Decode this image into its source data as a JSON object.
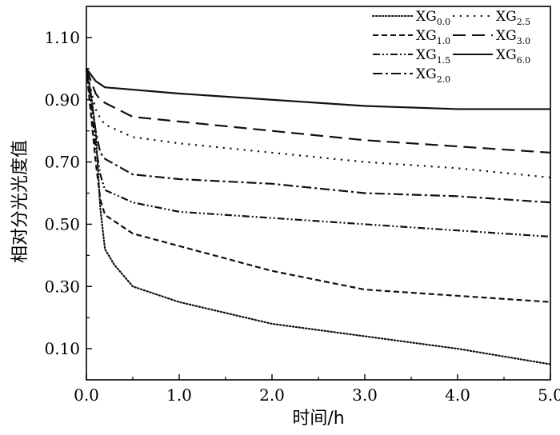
{
  "chart_data": {
    "type": "line",
    "title": "",
    "xlabel": "时间/h",
    "ylabel": "相对分光光度值",
    "xlim": [
      0,
      5
    ],
    "ylim": [
      0,
      1.2
    ],
    "x_ticks": [
      0,
      1,
      2,
      3,
      4,
      5
    ],
    "x_tick_labels": [
      "0.0",
      "1.0",
      "2.0",
      "3.0",
      "4.0",
      "5.0"
    ],
    "y_ticks": [
      0.1,
      0.3,
      0.5,
      0.7,
      0.9,
      1.1
    ],
    "y_tick_labels": [
      "0.10",
      "0.30",
      "0.50",
      "0.70",
      "0.90",
      "1.10"
    ],
    "grid": false,
    "legend_position": "top-right",
    "legend_columns": 2,
    "series": [
      {
        "name": "XG",
        "subscript": "0.0",
        "dash": "dotted",
        "x": [
          0,
          0.05,
          0.1,
          0.15,
          0.2,
          0.3,
          0.5,
          1,
          2,
          3,
          4,
          5
        ],
        "y": [
          1.0,
          0.92,
          0.8,
          0.55,
          0.42,
          0.37,
          0.3,
          0.25,
          0.18,
          0.14,
          0.1,
          0.05
        ]
      },
      {
        "name": "XG",
        "subscript": "1.0",
        "dash": "short-dash",
        "x": [
          0,
          0.05,
          0.1,
          0.15,
          0.2,
          0.5,
          1,
          2,
          3,
          4,
          5
        ],
        "y": [
          1.0,
          0.85,
          0.7,
          0.58,
          0.53,
          0.47,
          0.43,
          0.35,
          0.29,
          0.27,
          0.25
        ]
      },
      {
        "name": "XG",
        "subscript": "1.5",
        "dash": "dash-dot-dot",
        "x": [
          0,
          0.05,
          0.1,
          0.15,
          0.2,
          0.5,
          1,
          2,
          3,
          4,
          5
        ],
        "y": [
          1.0,
          0.88,
          0.75,
          0.66,
          0.61,
          0.57,
          0.54,
          0.52,
          0.5,
          0.48,
          0.46
        ]
      },
      {
        "name": "XG",
        "subscript": "2.0",
        "dash": "dash-dot",
        "x": [
          0,
          0.05,
          0.1,
          0.15,
          0.2,
          0.5,
          1,
          2,
          3,
          4,
          5
        ],
        "y": [
          1.0,
          0.9,
          0.8,
          0.73,
          0.71,
          0.66,
          0.645,
          0.63,
          0.6,
          0.59,
          0.57
        ]
      },
      {
        "name": "XG",
        "subscript": "2.5",
        "dash": "sparse-dot",
        "x": [
          0,
          0.05,
          0.1,
          0.15,
          0.2,
          0.5,
          1,
          2,
          3,
          4,
          5
        ],
        "y": [
          1.0,
          0.93,
          0.87,
          0.84,
          0.82,
          0.78,
          0.76,
          0.73,
          0.7,
          0.68,
          0.65
        ]
      },
      {
        "name": "XG",
        "subscript": "3.0",
        "dash": "long-dash",
        "x": [
          0,
          0.05,
          0.1,
          0.15,
          0.2,
          0.5,
          1,
          2,
          3,
          4,
          5
        ],
        "y": [
          1.0,
          0.96,
          0.92,
          0.9,
          0.89,
          0.845,
          0.83,
          0.8,
          0.77,
          0.75,
          0.73
        ]
      },
      {
        "name": "XG",
        "subscript": "6.0",
        "dash": "solid",
        "x": [
          0,
          0.1,
          0.2,
          1,
          2,
          3,
          4,
          5
        ],
        "y": [
          1.0,
          0.96,
          0.94,
          0.92,
          0.9,
          0.88,
          0.87,
          0.87
        ]
      }
    ],
    "legend_order": [
      0,
      4,
      1,
      5,
      2,
      6,
      3
    ]
  }
}
